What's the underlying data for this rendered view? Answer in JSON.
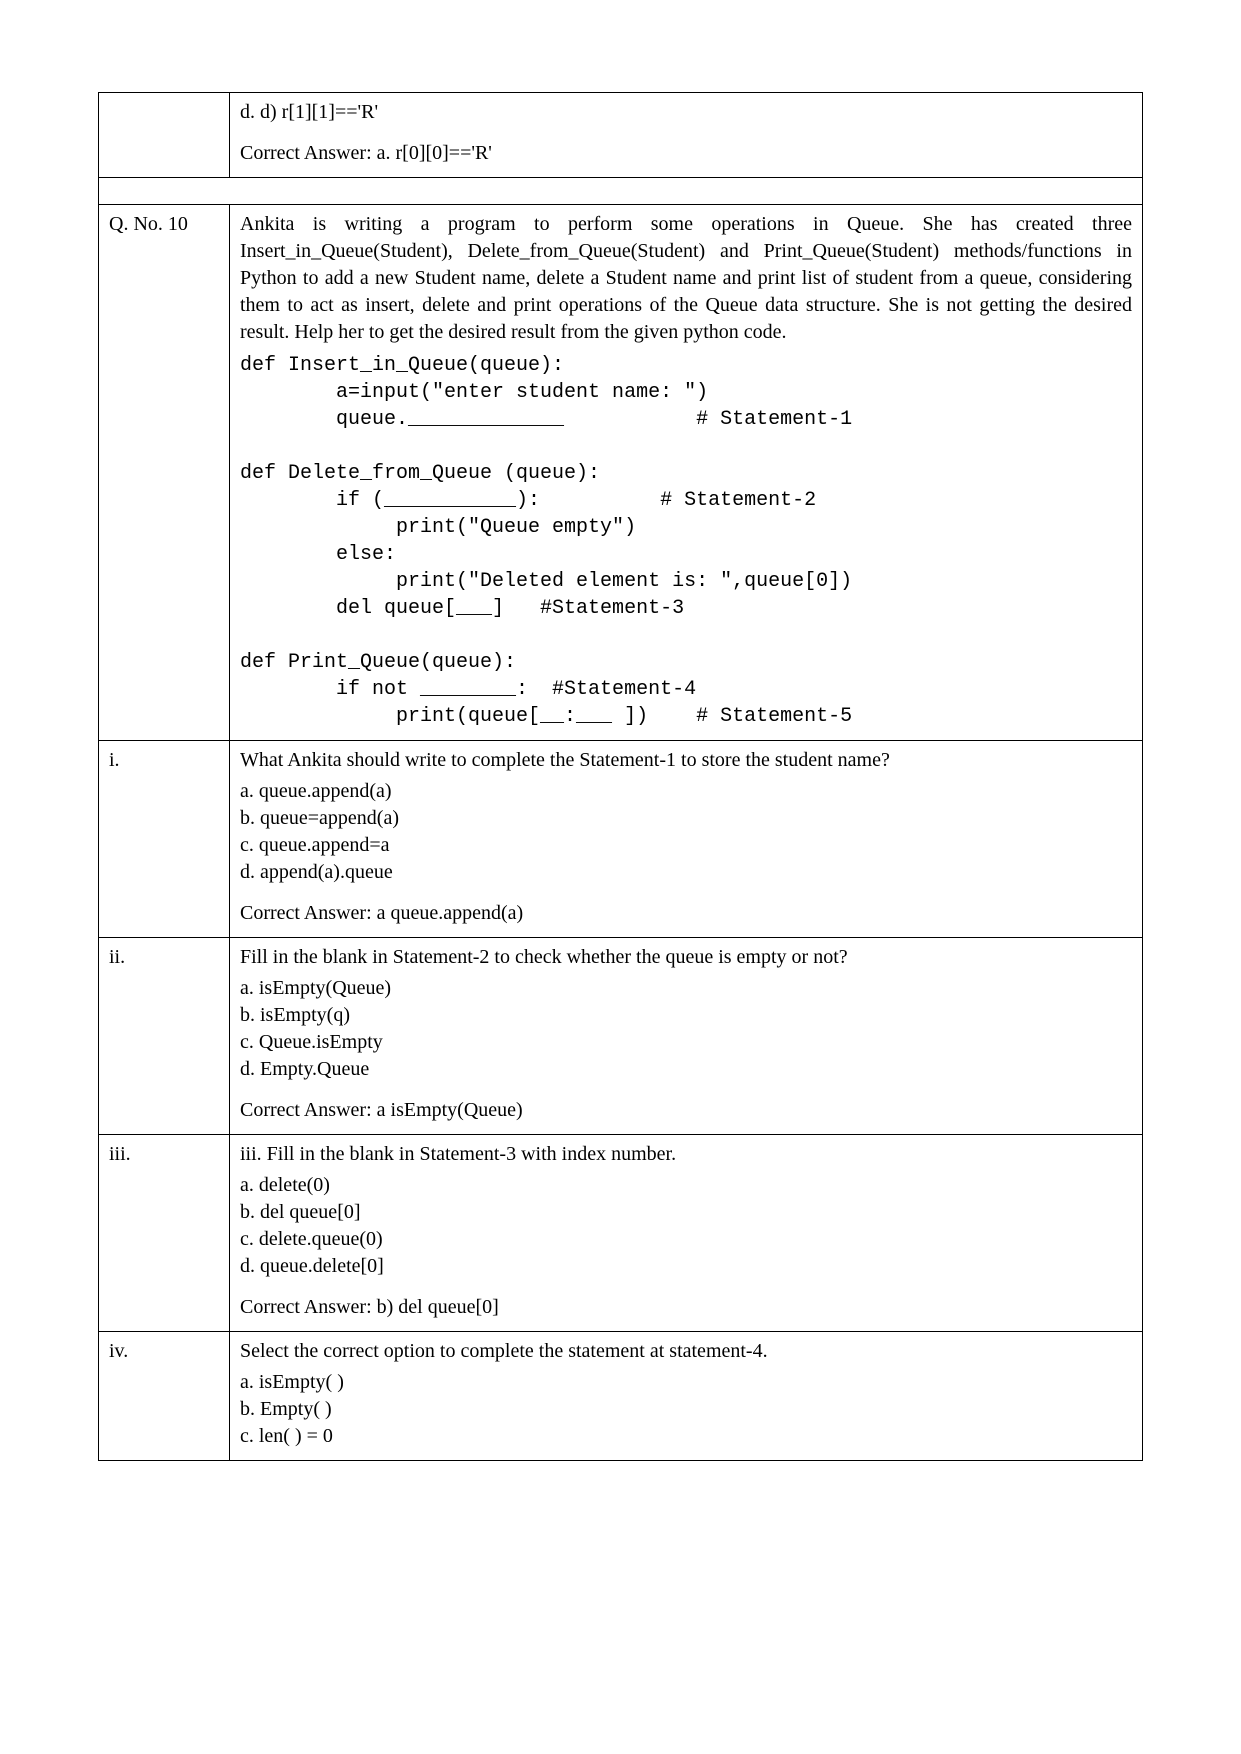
{
  "top_fragment": {
    "option_d": "d.       d) r[1][1]=='R'",
    "correct": "Correct Answer:   a.   r[0][0]=='R'"
  },
  "q10": {
    "label": "Q. No. 10",
    "intro": "Ankita is writing a program to perform some operations in Queue. She has created three Insert_in_Queue(Student), Delete_from_Queue(Student) and Print_Queue(Student) methods/functions in Python to add a new Student name, delete a Student name and print list of student from a queue, considering them to act as insert, delete and print operations of the Queue data structure. She is not getting the desired result. Help her to get the desired result from the given python code.",
    "code": "def Insert_in_Queue(queue):\n        a=input(\"enter student name: \")\n        queue._____________           # Statement-1\n\ndef Delete_from_Queue (queue):\n        if (___________):          # Statement-2\n             print(\"Queue empty\")\n        else:\n             print(\"Deleted element is: \",queue[0])\n        del queue[___]   #Statement-3\n\ndef Print_Queue(queue):\n        if not ________:  #Statement-4\n             print(queue[__:___ ])    # Statement-5"
  },
  "parts": {
    "i": {
      "label": "i.",
      "q": "What Ankita should write to complete the Statement-1 to store the student name?",
      "a": "a.   queue.append(a)",
      "b": "b.   queue=append(a)",
      "c": "c.   queue.append=a",
      "d": "d.   append(a).queue",
      "correct": "Correct Answer: a   queue.append(a)"
    },
    "ii": {
      "label": "ii.",
      "q": "Fill in the blank in Statement-2 to check whether the queue is empty or not?",
      "a": "a.  isEmpty(Queue)",
      "b": "b.  isEmpty(q)",
      "c": "c.  Queue.isEmpty",
      "d": "d.  Empty.Queue",
      "correct": "Correct Answer: a  isEmpty(Queue)"
    },
    "iii": {
      "label": "iii.",
      "q": "iii.        Fill in the blank in Statement-3 with index number.",
      "a": "a.  delete(0)",
      "b": "b.  del queue[0]",
      "c": "c.  delete.queue(0)",
      "d": "d.  queue.delete[0]",
      "correct": "Correct Answer: b) del queue[0]"
    },
    "iv": {
      "label": "iv.",
      "q": "Select the correct option to complete the statement at statement-4.",
      "a": "a.        isEmpty( )",
      "b": "b.        Empty( )",
      "c": "c.        len( ) = 0"
    }
  }
}
